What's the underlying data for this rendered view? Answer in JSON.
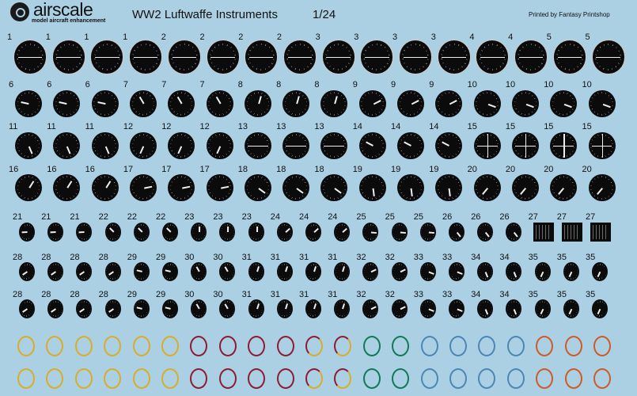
{
  "header": {
    "brand": "airscale",
    "brand_tagline": "model aircraft enhancement",
    "title": "WW2 Luftwaffe Instruments",
    "scale": "1/24",
    "printer": "Printed by Fantasy Printshop"
  },
  "gauge_rows": [
    {
      "labels": [
        "1",
        "1",
        "1",
        "1",
        "2",
        "2",
        "2",
        "2",
        "3",
        "3",
        "3",
        "3",
        "4",
        "4",
        "5",
        "5"
      ],
      "style": "horizon"
    },
    {
      "labels": [
        "6",
        "6",
        "6",
        "7",
        "7",
        "7",
        "8",
        "8",
        "8",
        "9",
        "9",
        "9",
        "10",
        "10",
        "10",
        "10"
      ],
      "style": "dial"
    },
    {
      "labels": [
        "11",
        "11",
        "11",
        "12",
        "12",
        "12",
        "13",
        "13",
        "13",
        "14",
        "14",
        "14",
        "15",
        "15",
        "15",
        "15"
      ],
      "style": "dial"
    },
    {
      "labels": [
        "16",
        "16",
        "16",
        "17",
        "17",
        "17",
        "18",
        "18",
        "18",
        "19",
        "19",
        "19",
        "20",
        "20",
        "20",
        "20"
      ],
      "style": "dial"
    },
    {
      "labels": [
        "21",
        "21",
        "21",
        "22",
        "22",
        "22",
        "23",
        "23",
        "23",
        "24",
        "24",
        "24",
        "25",
        "25",
        "25",
        "26",
        "26",
        "26",
        "27",
        "27",
        "27"
      ],
      "style": "small"
    },
    {
      "labels": [
        "28",
        "28",
        "28",
        "28",
        "29",
        "29",
        "30",
        "30",
        "31",
        "31",
        "31",
        "31",
        "32",
        "32",
        "33",
        "33",
        "34",
        "34",
        "35",
        "35",
        "35"
      ],
      "style": "small"
    },
    {
      "labels": [
        "28",
        "28",
        "28",
        "28",
        "29",
        "29",
        "30",
        "30",
        "31",
        "31",
        "31",
        "31",
        "32",
        "32",
        "33",
        "33",
        "34",
        "34",
        "35",
        "35",
        "35"
      ],
      "style": "small"
    }
  ],
  "bezel_rings": {
    "colors": [
      "yellow",
      "yellow",
      "yellow",
      "yellow",
      "yellow",
      "yellow",
      "red",
      "red",
      "red",
      "red",
      "red-yellow",
      "red-yellow",
      "green",
      "green",
      "blue",
      "blue",
      "blue",
      "blue",
      "orange",
      "orange",
      "orange"
    ],
    "palette": {
      "yellow": "#d8ad2a",
      "red": "#8e1b34",
      "green": "#0e7a56",
      "blue": "#4d86b3",
      "orange": "#cf5a26"
    }
  },
  "colors": {
    "background": "#abd0e4",
    "gauge_face": "#0b0b0b"
  }
}
